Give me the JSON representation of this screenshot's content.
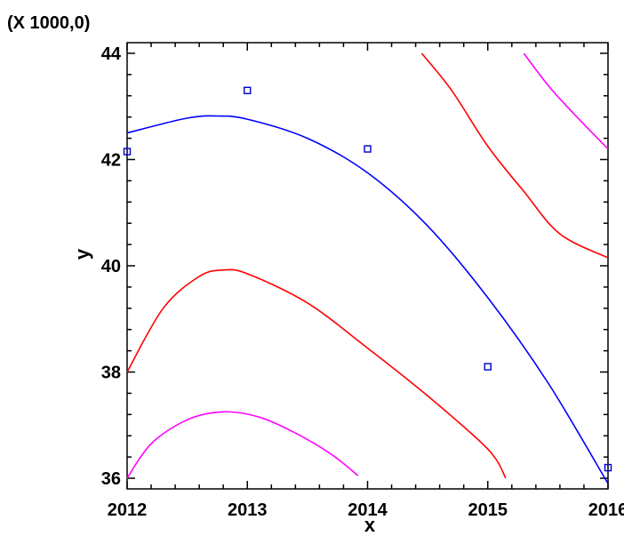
{
  "chart_data": {
    "type": "line",
    "title": "",
    "xlabel": "x",
    "ylabel": "y",
    "y_multiplier_label": "(X 1000,0)",
    "xlim": [
      2012,
      2016
    ],
    "ylim": [
      35.8,
      44.2
    ],
    "x_ticks": [
      2012,
      2013,
      2014,
      2015,
      2016
    ],
    "y_ticks": [
      36,
      38,
      40,
      42,
      44
    ],
    "x_tick_labels": [
      "2012",
      "2013",
      "2014",
      "2015",
      "2016"
    ],
    "y_tick_labels": [
      "36",
      "38",
      "40",
      "42",
      "44"
    ],
    "grid": false,
    "legend": "none",
    "colors": {
      "fit": "#0000ff",
      "confidence": "#ff0000",
      "prediction": "#ff00ff",
      "points": "#0000cc",
      "axes": "#000000"
    },
    "points": [
      {
        "x": 2012.0,
        "y": 42.15
      },
      {
        "x": 2013.0,
        "y": 43.3
      },
      {
        "x": 2014.0,
        "y": 42.2
      },
      {
        "x": 2015.0,
        "y": 38.1
      },
      {
        "x": 2016.0,
        "y": 36.2
      }
    ],
    "series": [
      {
        "role": "fitted",
        "color": "#0000ff",
        "x": [
          2012.0,
          2012.5,
          2012.75,
          2013.0,
          2013.5,
          2014.0,
          2014.5,
          2015.0,
          2015.5,
          2016.0
        ],
        "y": [
          42.5,
          42.78,
          42.82,
          42.76,
          42.4,
          41.75,
          40.75,
          39.4,
          37.8,
          35.9
        ]
      },
      {
        "role": "lower-confidence",
        "color": "#ff0000",
        "x": [
          2012.0,
          2012.3,
          2012.6,
          2012.8,
          2013.0,
          2013.5,
          2014.0,
          2014.5,
          2015.0,
          2015.15
        ],
        "y": [
          38.0,
          39.2,
          39.8,
          39.92,
          39.85,
          39.3,
          38.45,
          37.55,
          36.55,
          36.0
        ]
      },
      {
        "role": "upper-confidence",
        "color": "#ff0000",
        "x": [
          2014.45,
          2014.7,
          2015.0,
          2015.3,
          2015.6,
          2016.0
        ],
        "y": [
          44.0,
          43.3,
          42.25,
          41.4,
          40.6,
          40.15
        ]
      },
      {
        "role": "lower-prediction",
        "color": "#ff00ff",
        "x": [
          2012.0,
          2012.2,
          2012.5,
          2012.8,
          2013.1,
          2013.4,
          2013.7,
          2013.92
        ],
        "y": [
          36.0,
          36.65,
          37.1,
          37.25,
          37.15,
          36.85,
          36.45,
          36.05
        ]
      },
      {
        "role": "upper-prediction",
        "color": "#ff00ff",
        "x": [
          2015.3,
          2015.5,
          2015.7,
          2016.0
        ],
        "y": [
          44.0,
          43.4,
          42.9,
          42.2
        ]
      }
    ]
  }
}
